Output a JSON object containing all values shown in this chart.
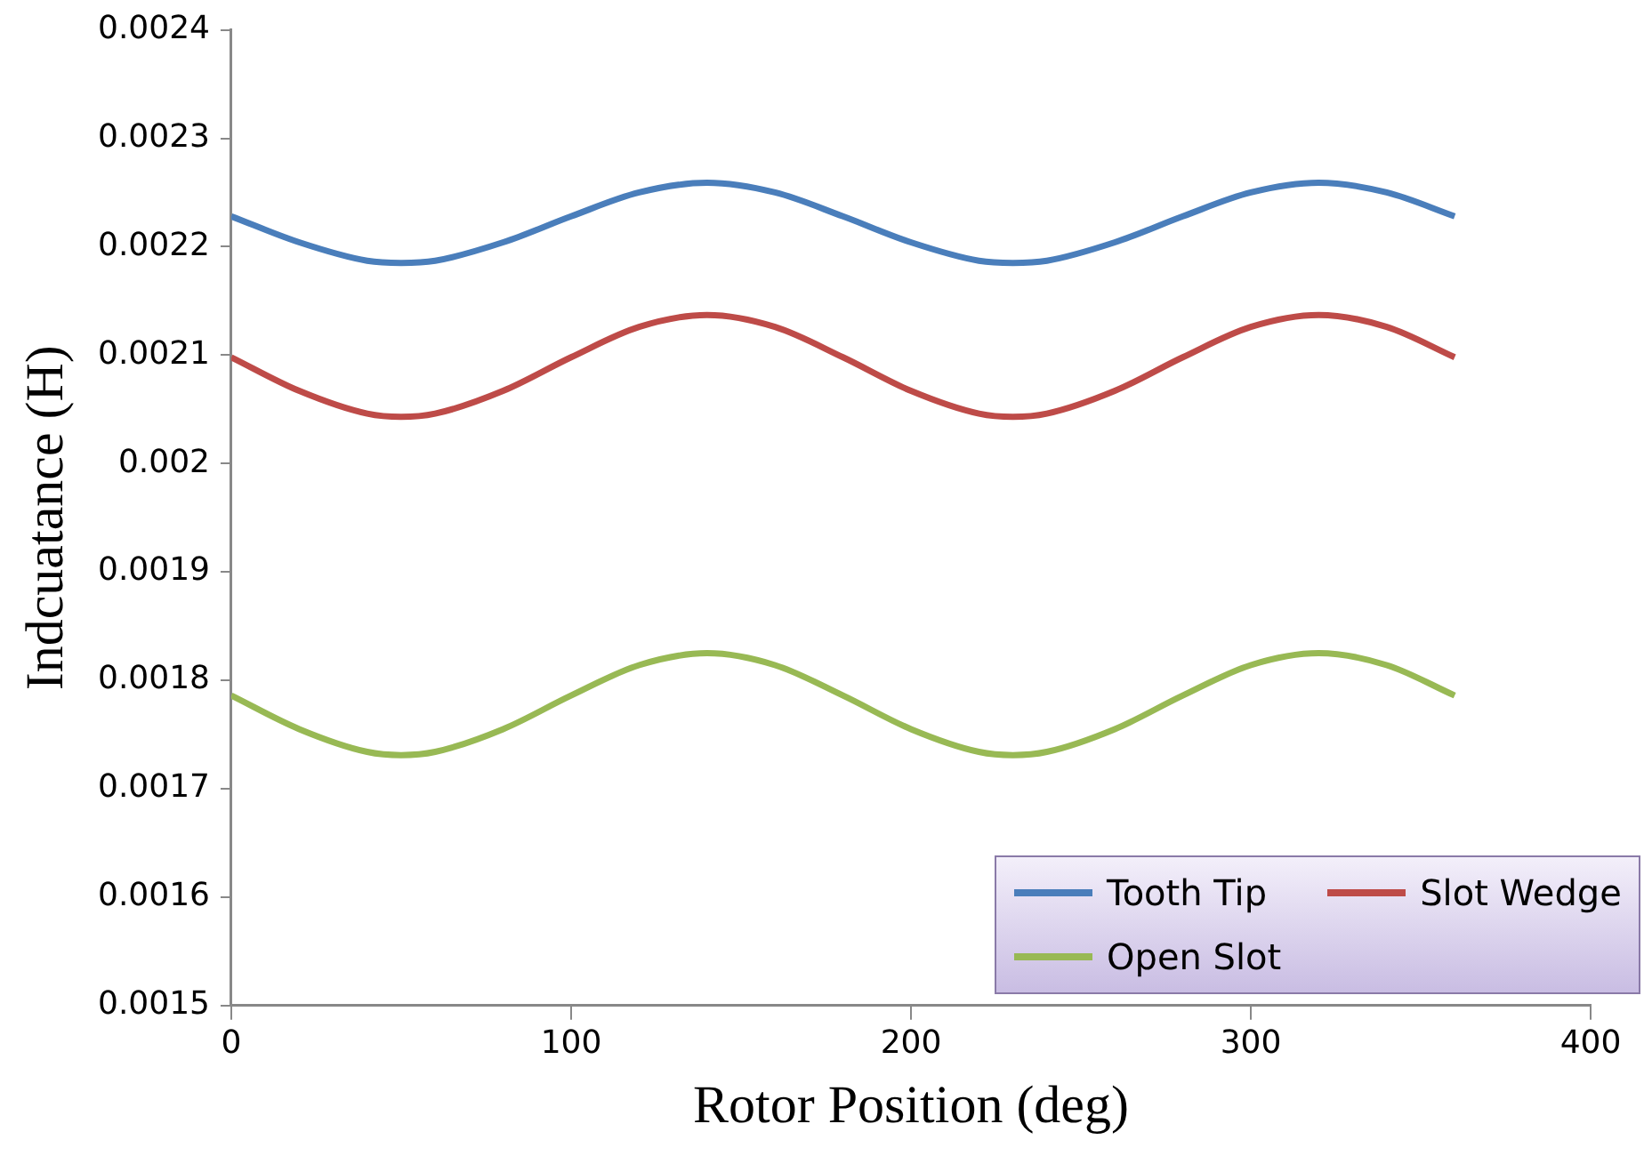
{
  "chart_data": {
    "type": "line",
    "xlabel": "Rotor Position (deg)",
    "ylabel": "Indcuatance (H)",
    "x": [
      0,
      20,
      40,
      50,
      60,
      80,
      100,
      120,
      140,
      160,
      180,
      200,
      220,
      230,
      240,
      260,
      280,
      300,
      320,
      340,
      360
    ],
    "series": [
      {
        "name": "Tooth Tip",
        "color": "#4a7ebb",
        "values": [
          0.002228,
          0.002204,
          0.002187,
          0.002185,
          0.002187,
          0.002204,
          0.002228,
          0.00225,
          0.002259,
          0.00225,
          0.002228,
          0.002204,
          0.002187,
          0.002185,
          0.002187,
          0.002204,
          0.002228,
          0.00225,
          0.002259,
          0.00225,
          0.002228
        ]
      },
      {
        "name": "Slot Wedge",
        "color": "#be4b48",
        "values": [
          0.002098,
          0.002067,
          0.002046,
          0.002043,
          0.002046,
          0.002067,
          0.002098,
          0.002126,
          0.002137,
          0.002126,
          0.002098,
          0.002067,
          0.002046,
          0.002043,
          0.002046,
          0.002067,
          0.002098,
          0.002126,
          0.002137,
          0.002126,
          0.002098
        ]
      },
      {
        "name": "Open Slot",
        "color": "#98b954",
        "values": [
          0.001786,
          0.001755,
          0.001734,
          0.001731,
          0.001734,
          0.001755,
          0.001786,
          0.001814,
          0.001825,
          0.001814,
          0.001786,
          0.001755,
          0.001734,
          0.001731,
          0.001734,
          0.001755,
          0.001786,
          0.001814,
          0.001825,
          0.001814,
          0.001786
        ]
      }
    ],
    "xlim": [
      0,
      400
    ],
    "xticks": [
      0,
      100,
      200,
      300,
      400
    ],
    "ylim": [
      0.0015,
      0.0024
    ],
    "yticks": [
      0.0015,
      0.0016,
      0.0017,
      0.0018,
      0.0019,
      0.002,
      0.0021,
      0.0022,
      0.0023,
      0.0024
    ],
    "grid": false,
    "legend": "bottom right",
    "marker": "none",
    "line_style": "solid"
  }
}
